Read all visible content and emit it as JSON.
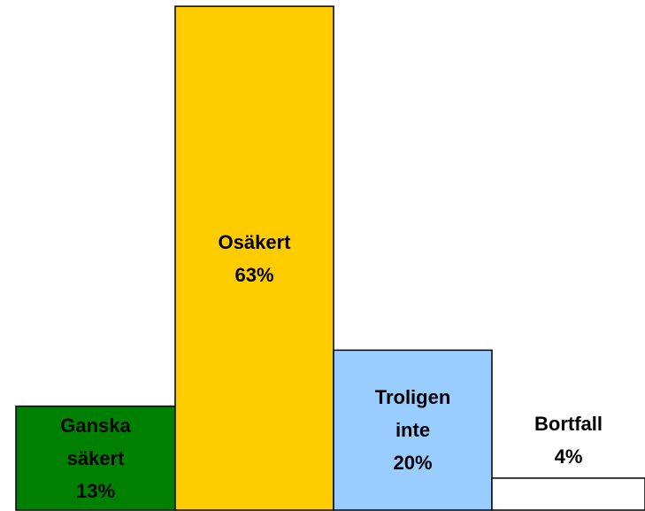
{
  "chart_data": {
    "type": "bar",
    "categories": [
      "Ganska säkert",
      "Osäkert",
      "Troligen inte",
      "Bortfall"
    ],
    "values": [
      13,
      63,
      20,
      4
    ],
    "value_labels": [
      "13%",
      "63%",
      "20%",
      "4%"
    ],
    "colors": [
      "#008000",
      "#ffcc00",
      "#99ccff",
      "#ffffff"
    ]
  }
}
